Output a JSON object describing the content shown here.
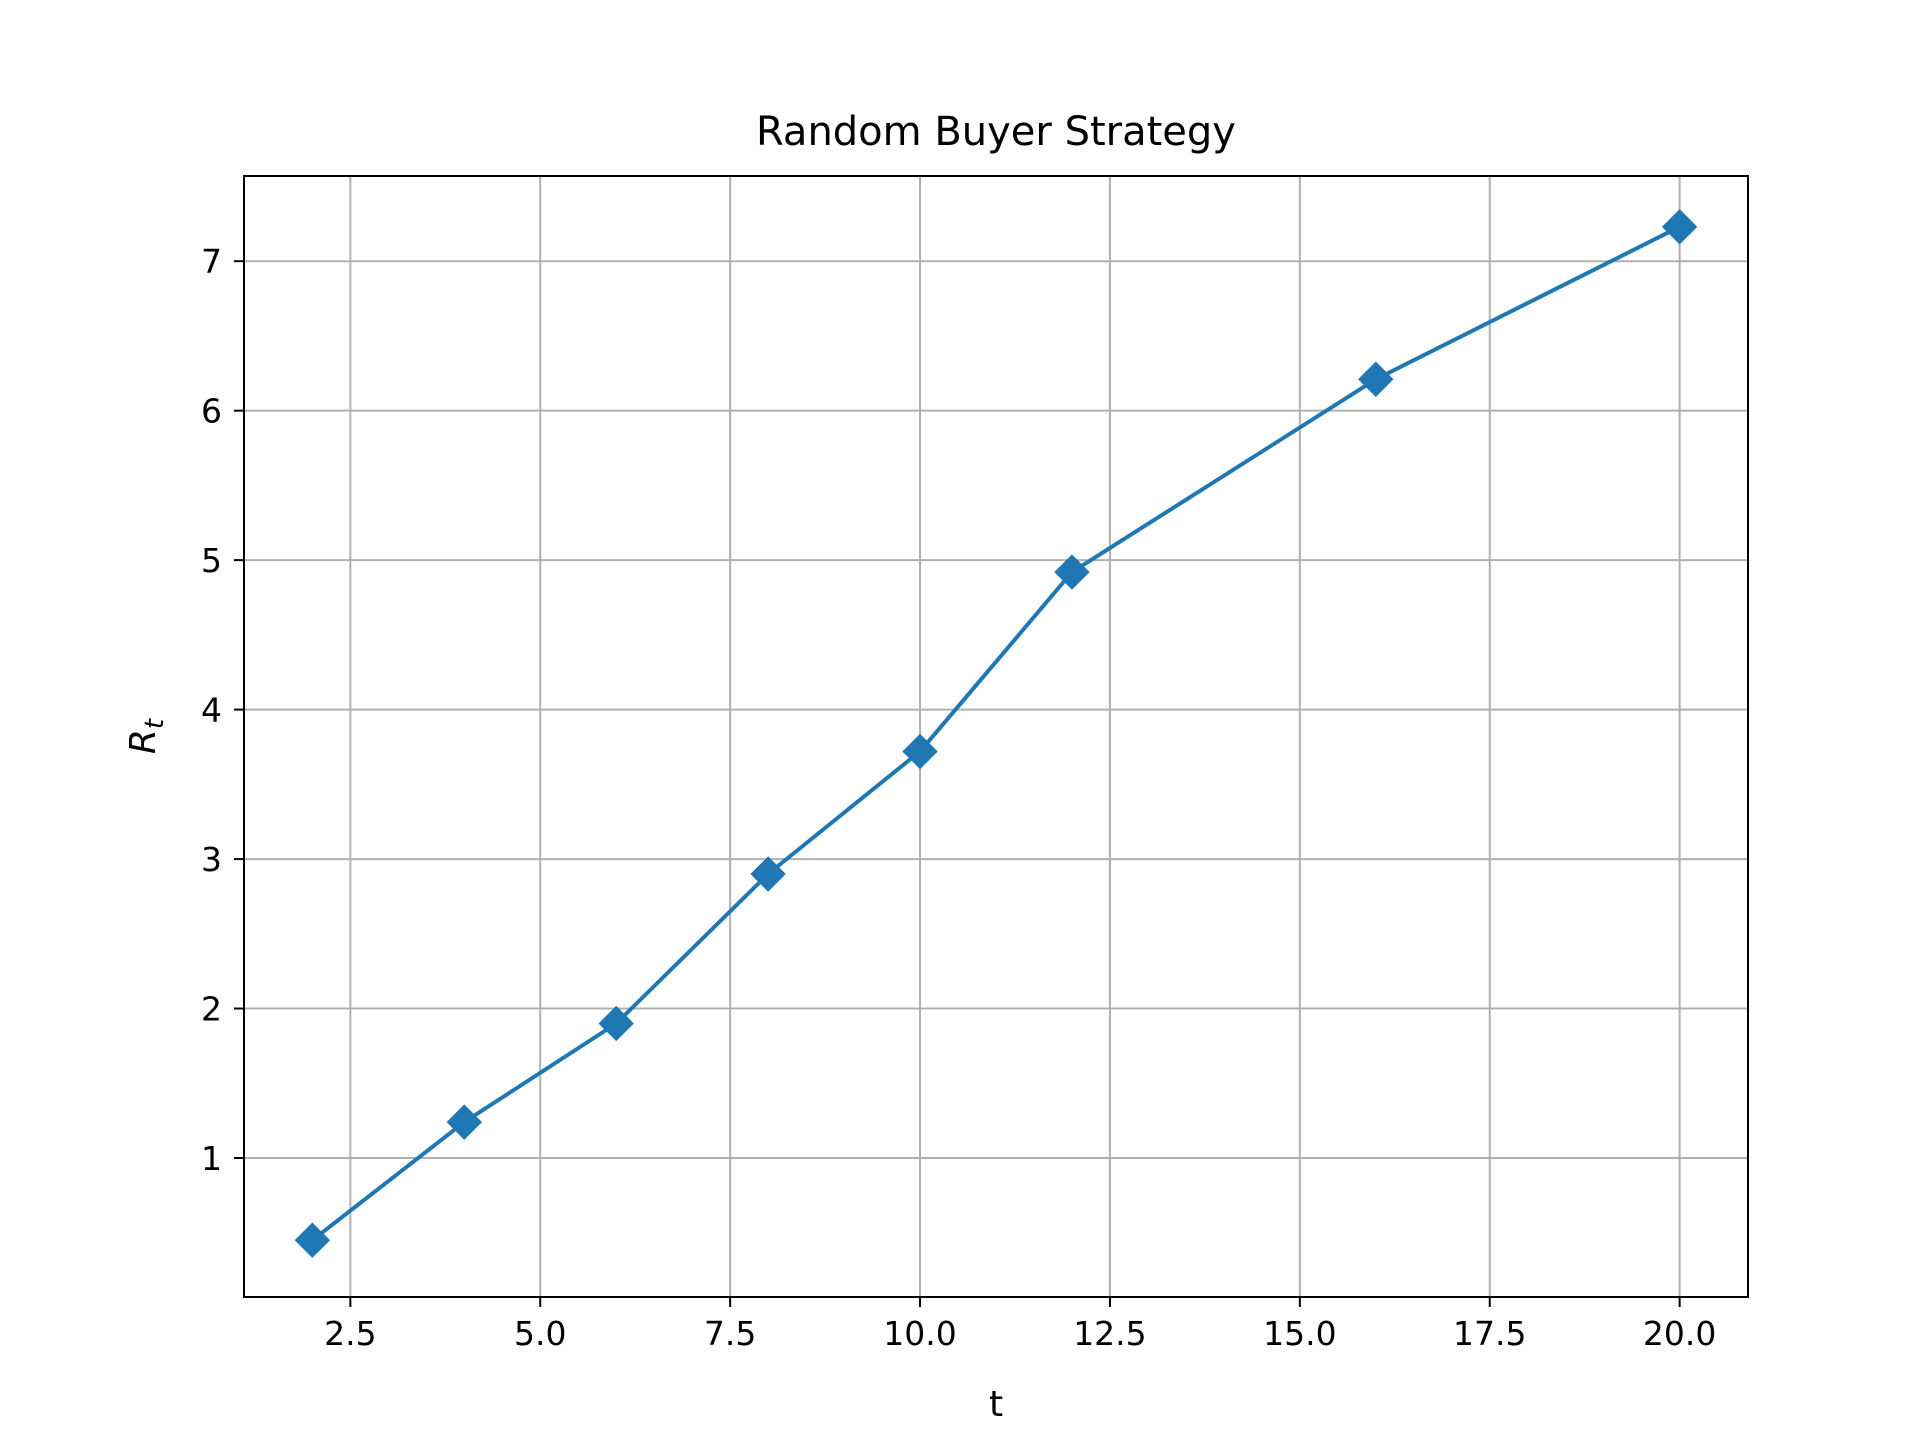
{
  "chart_data": {
    "type": "line",
    "title": "Random Buyer Strategy",
    "xlabel": "t",
    "ylabel_main": "R",
    "ylabel_sub": "t",
    "xlim": [
      1.1,
      20.9
    ],
    "ylim": [
      0.07,
      7.57
    ],
    "xticks": [
      2.5,
      5.0,
      7.5,
      10.0,
      12.5,
      15.0,
      17.5,
      20.0
    ],
    "xtick_labels": [
      "2.5",
      "5.0",
      "7.5",
      "10.0",
      "12.5",
      "15.0",
      "17.5",
      "20.0"
    ],
    "yticks": [
      1,
      2,
      3,
      4,
      5,
      6,
      7
    ],
    "ytick_labels": [
      "1",
      "2",
      "3",
      "4",
      "5",
      "6",
      "7"
    ],
    "grid": true,
    "marker": "diamond",
    "color": "#1f77b4",
    "series": [
      {
        "x": [
          2,
          4,
          6,
          8,
          10,
          12,
          16,
          20
        ],
        "values": [
          0.45,
          1.24,
          1.9,
          2.9,
          3.72,
          4.92,
          6.21,
          7.23
        ]
      }
    ]
  }
}
